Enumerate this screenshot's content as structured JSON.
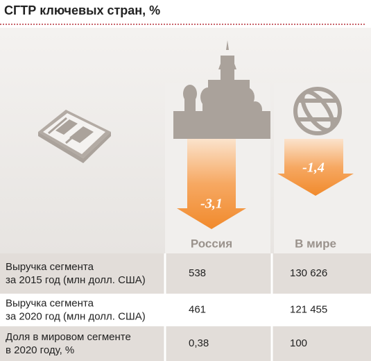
{
  "header": {
    "title": "СГТР ключевых стран, %"
  },
  "columns": [
    {
      "name": "Россия",
      "change": "-3,1"
    },
    {
      "name": "В мире",
      "change": "-1,4"
    }
  ],
  "table": {
    "rows": [
      [
        "Выручка сегмента\nза 2015 год (млн долл. США)",
        "538",
        "130 626"
      ],
      [
        "Выручка сегмента\nза 2020 год (млн долл. США)",
        "461",
        "121 455"
      ],
      [
        "Доля в мировом сегменте\nв 2020 году, %",
        "0,38",
        "100"
      ]
    ]
  }
}
